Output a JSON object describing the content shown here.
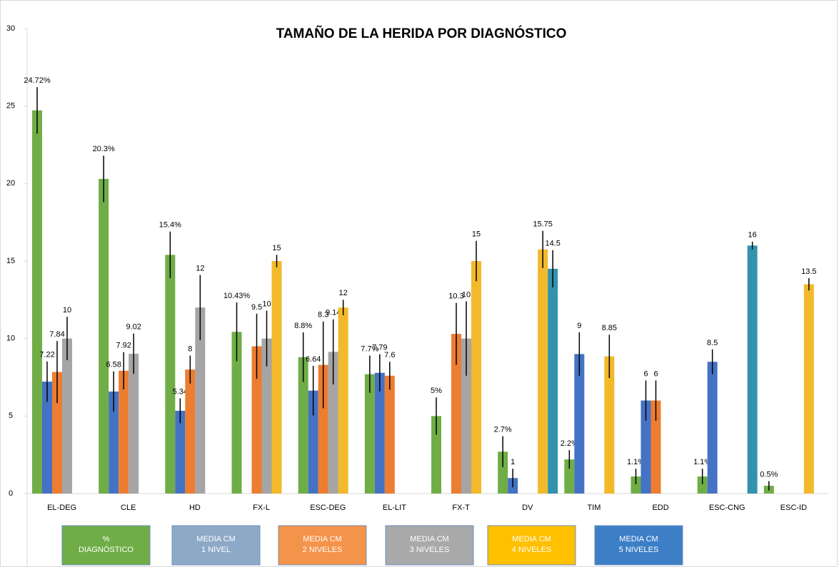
{
  "chart_data": {
    "type": "bar",
    "title": "TAMAÑO DE LA HERIDA POR DIAGNÓSTICO",
    "categories": [
      "EL-DEG",
      "CLE",
      "HD",
      "FX-L",
      "ESC-DEG",
      "EL-LIT",
      "FX-T",
      "DV",
      "TIM",
      "EDD",
      "ESC-CNG",
      "ESC-ID"
    ],
    "ylim": [
      0,
      30
    ],
    "yticks": [
      0,
      5,
      10,
      15,
      20,
      25,
      30
    ],
    "grid": false,
    "legend": "bottom",
    "error_bars": true,
    "series": [
      {
        "name": "% DIAGNÓSTICO",
        "color": "#70ad47",
        "legend_color": "#70ad47",
        "values": [
          24.72,
          20.3,
          15.4,
          10.43,
          8.8,
          7.7,
          5,
          2.7,
          2.2,
          1.1,
          1.1,
          0.5
        ],
        "value_labels": [
          "24.72%",
          "20.3%",
          "15.4%",
          "10.43%",
          "8.8%",
          "7.7%",
          "5%",
          "2.7%",
          "2.2%",
          "1.1%",
          "1.1%",
          "0.5%"
        ],
        "errors": [
          1.5,
          1.5,
          1.5,
          1.9,
          1.6,
          1.2,
          1.2,
          1.0,
          0.6,
          0.5,
          0.5,
          0.3
        ]
      },
      {
        "name": "MEDIA CM 1 NIVEL",
        "color": "#4472c4",
        "legend_color": "#8ea9c8",
        "values": [
          7.22,
          6.58,
          5.34,
          null,
          6.64,
          7.79,
          null,
          1,
          9,
          6,
          8.5,
          null
        ],
        "errors": [
          1.3,
          1.3,
          0.8,
          null,
          1.6,
          1.2,
          null,
          0.6,
          1.4,
          1.3,
          0.8,
          null
        ]
      },
      {
        "name": "MEDIA CM 2 NIVELES",
        "color": "#ed7d31",
        "legend_color": "#f4934a",
        "values": [
          7.84,
          7.92,
          8,
          9.5,
          8.3,
          7.6,
          10.3,
          null,
          null,
          6,
          null,
          null
        ],
        "errors": [
          2.0,
          1.2,
          0.9,
          2.1,
          2.8,
          0.9,
          2.0,
          null,
          null,
          1.3,
          null,
          null
        ]
      },
      {
        "name": "MEDIA CM 3 NIVELES",
        "color": "#a5a5a5",
        "legend_color": "#a9a9a9",
        "values": [
          10,
          9.02,
          12,
          10,
          9.14,
          null,
          10,
          null,
          null,
          null,
          null,
          null
        ],
        "errors": [
          1.4,
          1.3,
          2.1,
          1.8,
          2.1,
          null,
          2.4,
          null,
          null,
          null,
          null,
          null
        ]
      },
      {
        "name": "MEDIA CM 4 NIVELES",
        "color": "#f2b92a",
        "legend_color": "#ffc000",
        "values": [
          null,
          null,
          null,
          15,
          12,
          null,
          15,
          15.75,
          8.85,
          null,
          null,
          13.5
        ],
        "errors": [
          null,
          null,
          null,
          0.4,
          0.5,
          null,
          1.3,
          1.2,
          1.4,
          null,
          null,
          0.4
        ]
      },
      {
        "name": "MEDIA CM 5 NIVELES",
        "color": "#3393ad",
        "legend_color": "#3d7fc6",
        "values": [
          null,
          null,
          null,
          null,
          null,
          null,
          null,
          14.5,
          null,
          null,
          16,
          null
        ],
        "errors": [
          null,
          null,
          null,
          null,
          null,
          null,
          null,
          1.2,
          null,
          null,
          0.25,
          null
        ]
      }
    ]
  }
}
